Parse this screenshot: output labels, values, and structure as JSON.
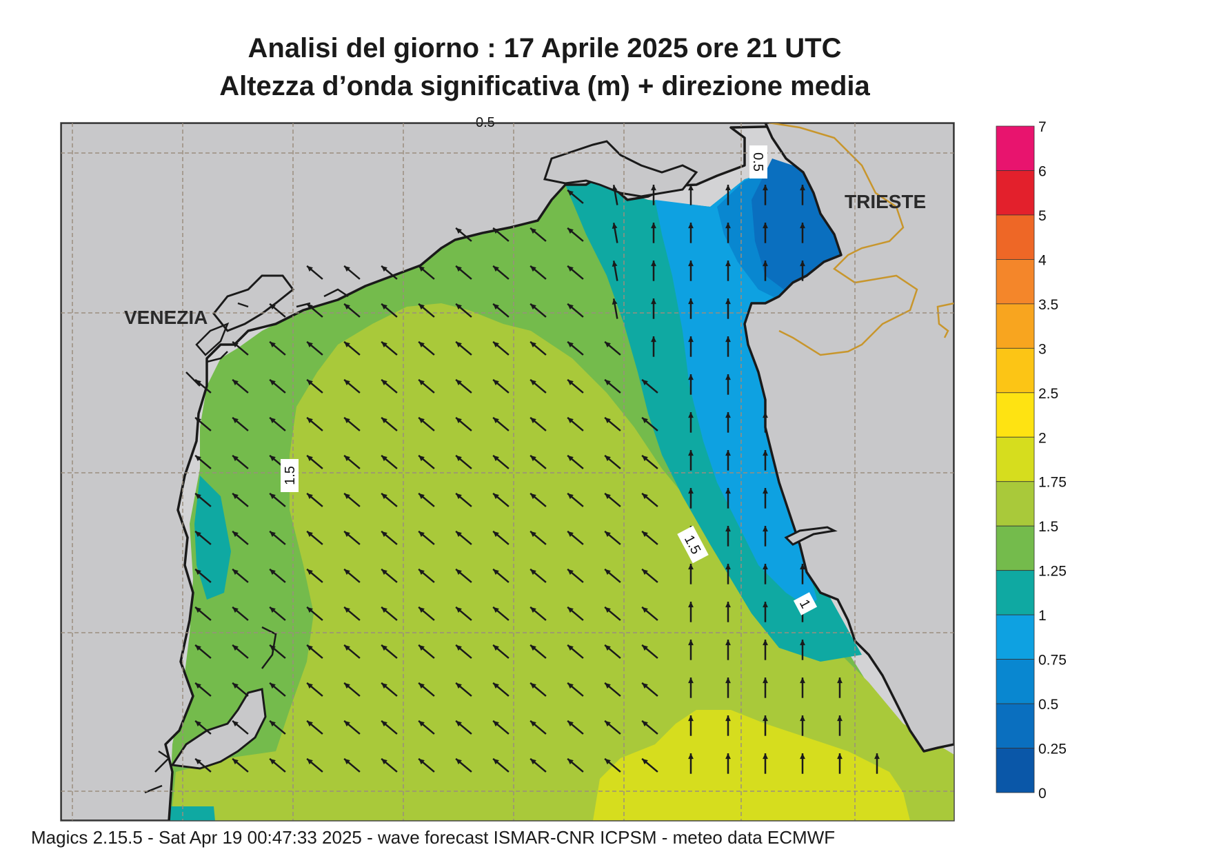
{
  "header": {
    "title_line1": "Analisi del giorno :  17   Aprile  2025   ore 21 UTC",
    "title_line2": "Altezza d’onda significativa (m) + direzione media"
  },
  "labels": {
    "cities": [
      "VENEZIA",
      "TRIESTE"
    ],
    "contours": [
      "1.5",
      "1.5",
      "1",
      "0.5",
      "0.5"
    ]
  },
  "colorbar": {
    "levels": [
      "7",
      "6",
      "5",
      "4",
      "3.5",
      "3",
      "2.5",
      "2",
      "1.75",
      "1.5",
      "1.25",
      "1",
      "0.75",
      "0.5",
      "0.25",
      "0"
    ],
    "colors": [
      "#e8146e",
      "#e3202c",
      "#ee6726",
      "#f4862a",
      "#f8a51f",
      "#fcc515",
      "#fee312",
      "#d6dd1e",
      "#a9c93a",
      "#74bb4c",
      "#0fa9a2",
      "#0ea1e1",
      "#0987d0",
      "#0a6fbf",
      "#0a57a8"
    ]
  },
  "palette": {
    "land": "#d3d3d5",
    "coast": "#1a1a1a",
    "border": "#c8962c",
    "grid": "#9a8e7e",
    "band_0.25_0.5": "#0a6fbf",
    "band_0.5_0.75": "#0987d0",
    "band_0.75_1": "#0ea1e1",
    "band_1_1.25": "#0fa9a2",
    "band_1.25_1.5": "#74bb4c",
    "band_1.5_1.75": "#a9c93a",
    "band_1.75_2": "#d6dd1e"
  },
  "footer": {
    "text": "Magics 2.15.5 - Sat Apr 19 00:47:33 2025 - wave forecast  ISMAR-CNR  ICPSM - meteo data   ECMWF"
  }
}
